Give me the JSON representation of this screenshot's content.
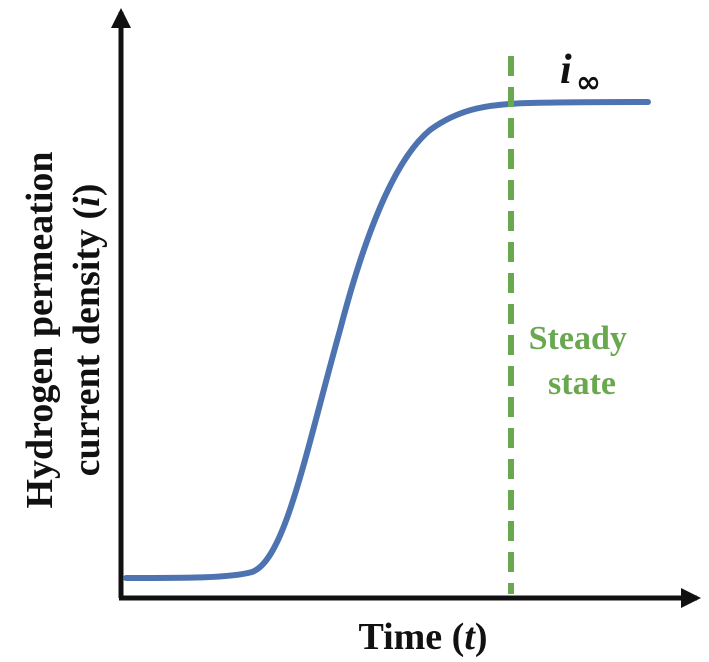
{
  "colors": {
    "axis": "#111111",
    "curve": "#4d74b0",
    "steady_line": "#6aa84f",
    "steady_text": "#6aa84f"
  },
  "chart_data": {
    "type": "line",
    "xlabel": {
      "text_before": "Time (",
      "variable": "t",
      "text_after": ")"
    },
    "ylabel": {
      "line1": "Hydrogen permeation",
      "line2_before": "current density (",
      "line2_variable": "i",
      "line2_after": ")"
    },
    "grid": false,
    "axis_ticks": false,
    "series": [
      {
        "shape": "sigmoidal rise to a plateau"
      }
    ],
    "annotations": {
      "steady_state_line": {
        "style": "dashed vertical",
        "label_line1": "Steady",
        "label_line2": "state"
      },
      "plateau_label": {
        "symbol": "i",
        "subscript": "∞"
      }
    }
  }
}
